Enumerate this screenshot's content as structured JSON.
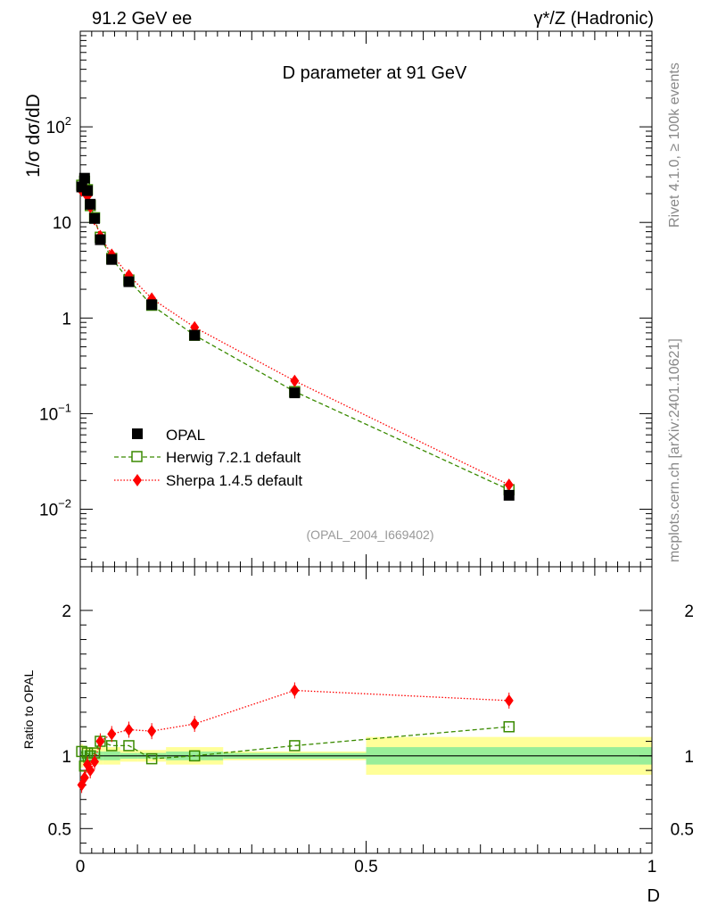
{
  "header": {
    "left": "91.2 GeV ee",
    "right": "γ*/Z (Hadronic)"
  },
  "side_text": {
    "rivet": "Rivet 4.1.0, ≥ 100k events",
    "mcplots": "mcplots.cern.ch [arXiv:2401.10621]"
  },
  "chart_data": {
    "type": "scatter",
    "title": "D parameter at 91 GeV",
    "ylabel": "1/σ  dσ/dD",
    "xlabel": "D",
    "analysis_id": "(OPAL_2004_I669402)",
    "x_ticks": [
      {
        "value": 0,
        "label": "0"
      },
      {
        "value": 0.5,
        "label": "0.5"
      },
      {
        "value": 1,
        "label": "1"
      }
    ],
    "main": {
      "yscale": "log",
      "ylim": [
        0.0025,
        1000
      ],
      "y_tick_labels": [
        {
          "value": 100,
          "base": "10",
          "exp": "2"
        },
        {
          "value": 10,
          "base": "10",
          "exp": ""
        },
        {
          "value": 1,
          "base": "1",
          "exp": ""
        },
        {
          "value": 0.1,
          "base": "10",
          "exp": "−1"
        },
        {
          "value": 0.01,
          "base": "10",
          "exp": "−2"
        }
      ],
      "series": [
        {
          "name": "OPAL",
          "style": "data",
          "color": "#000000",
          "x": [
            0.0025,
            0.0075,
            0.0125,
            0.0175,
            0.025,
            0.035,
            0.055,
            0.085,
            0.125,
            0.2,
            0.375,
            0.75
          ],
          "y": [
            23.5,
            29.0,
            21.5,
            15.5,
            11.0,
            6.6,
            4.1,
            2.4,
            1.38,
            0.66,
            0.165,
            0.014
          ]
        },
        {
          "name": "Herwig 7.2.1 default",
          "style": "dashed-square",
          "color": "#3a8a00",
          "x": [
            0.0025,
            0.0075,
            0.0125,
            0.0175,
            0.025,
            0.035,
            0.055,
            0.085,
            0.125,
            0.2,
            0.375,
            0.75
          ],
          "y": [
            24.5,
            27.0,
            22.0,
            15.0,
            11.2,
            7.0,
            4.2,
            2.5,
            1.36,
            0.66,
            0.17,
            0.016
          ]
        },
        {
          "name": "Sherpa 1.4.5 default",
          "style": "dotted-diamond",
          "color": "#ff0000",
          "x": [
            0.0025,
            0.0075,
            0.0125,
            0.0175,
            0.025,
            0.035,
            0.055,
            0.085,
            0.125,
            0.2,
            0.375,
            0.75
          ],
          "y": [
            21.5,
            23.2,
            18.8,
            14.5,
            10.8,
            7.2,
            4.6,
            2.8,
            1.6,
            0.8,
            0.22,
            0.018
          ]
        }
      ],
      "legend_position": "left-middle"
    },
    "ratio": {
      "ylabel": "Ratio to OPAL",
      "ylim": [
        0.33,
        2.3
      ],
      "y_tick_labels": [
        {
          "value": 2,
          "label": "2"
        },
        {
          "value": 1,
          "label": "1"
        },
        {
          "value": 0.5,
          "label": "0.5"
        }
      ],
      "bins": [
        0,
        0.005,
        0.01,
        0.015,
        0.02,
        0.03,
        0.04,
        0.07,
        0.1,
        0.15,
        0.25,
        0.5,
        1.0
      ],
      "band_inner": [
        0.04,
        0.04,
        0.03,
        0.03,
        0.03,
        0.03,
        0.03,
        0.02,
        0.02,
        0.03,
        0.02,
        0.06
      ],
      "band_outer": [
        0.08,
        0.07,
        0.06,
        0.06,
        0.06,
        0.06,
        0.06,
        0.04,
        0.04,
        0.06,
        0.03,
        0.13
      ],
      "series": [
        {
          "name": "Herwig 7.2.1 default",
          "style": "dashed-square",
          "color": "#3a8a00",
          "x": [
            0.0025,
            0.0075,
            0.0125,
            0.0175,
            0.025,
            0.035,
            0.055,
            0.085,
            0.125,
            0.2,
            0.375,
            0.75
          ],
          "y": [
            1.03,
            0.93,
            1.02,
            1.0,
            1.02,
            1.1,
            1.07,
            1.07,
            0.98,
            1.0,
            1.07,
            1.2
          ]
        },
        {
          "name": "Sherpa 1.4.5 default",
          "style": "dotted-diamond",
          "color": "#ff0000",
          "x": [
            0.0025,
            0.0075,
            0.0125,
            0.0175,
            0.025,
            0.035,
            0.055,
            0.085,
            0.125,
            0.2,
            0.375,
            0.75
          ],
          "y": [
            0.8,
            0.85,
            0.94,
            0.9,
            0.96,
            1.1,
            1.15,
            1.18,
            1.17,
            1.22,
            1.45,
            1.38
          ]
        }
      ]
    }
  }
}
